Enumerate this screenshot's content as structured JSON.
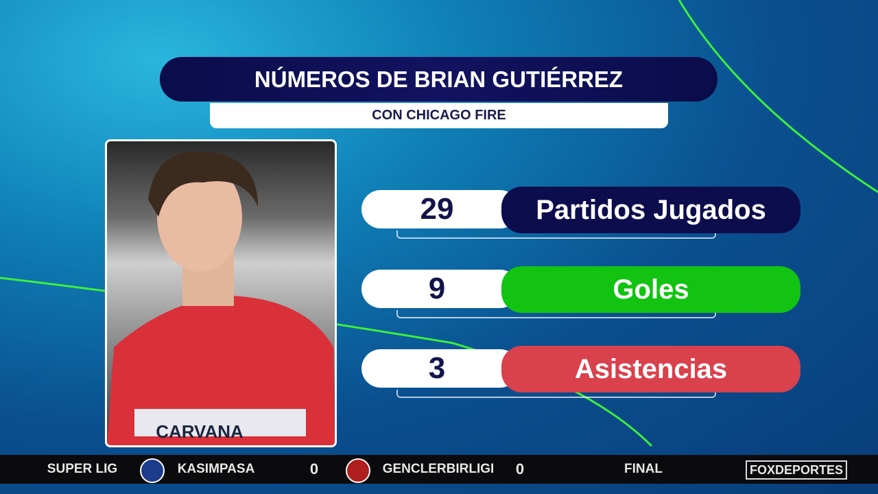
{
  "header": {
    "title": "NÚMEROS DE BRIAN GUTIÉRREZ",
    "subtitle": "CON CHICAGO FIRE"
  },
  "stats": [
    {
      "value": "29",
      "label": "Partidos Jugados"
    },
    {
      "value": "9",
      "label": "Goles"
    },
    {
      "value": "3",
      "label": "Asistencias"
    }
  ],
  "photo": {
    "sponsor": "CARVANA"
  },
  "ticker": {
    "league": "SUPER LIG",
    "home_team": "KASIMPASA",
    "home_score": "0",
    "away_team": "GENCLERBIRLIGI",
    "away_score": "0",
    "status": "FINAL",
    "brand": "FOXDEPORTES"
  }
}
